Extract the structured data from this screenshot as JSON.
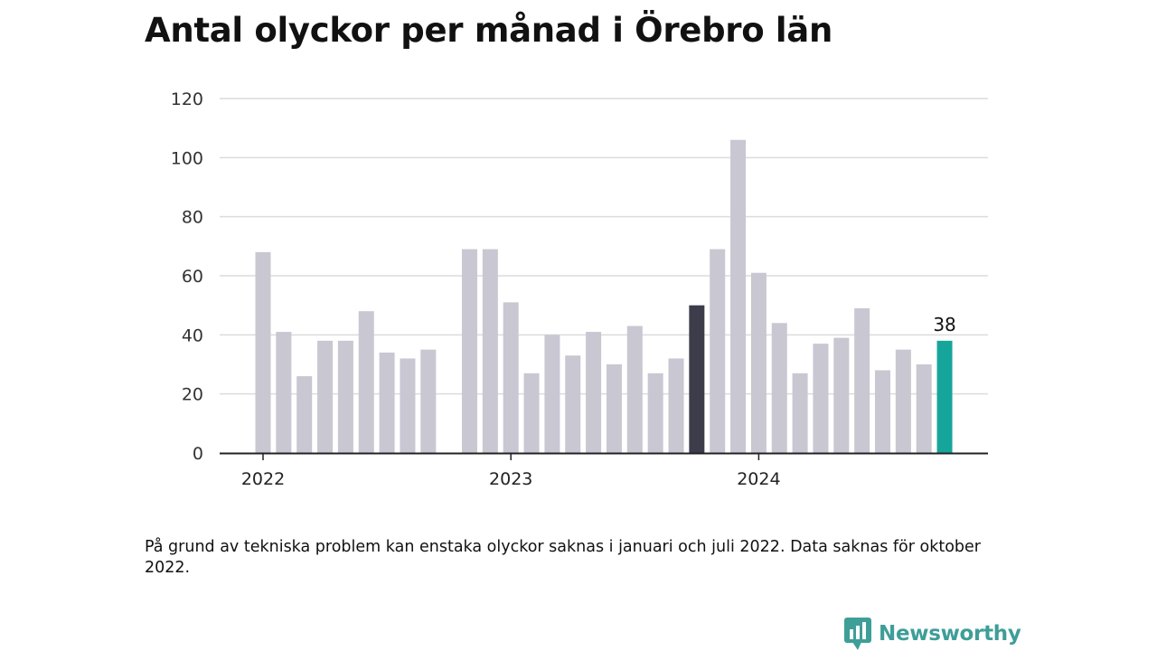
{
  "title": "Antal olyckor per månad i Örebro län",
  "note": "På grund av tekniska problem kan enstaka olyckor saknas i januari och juli 2022. Data saknas för oktober 2022.",
  "brand": {
    "name": "Newsworthy",
    "icon": "newsworthy-logo-icon"
  },
  "colors": {
    "bar": "#c8c7d2",
    "highlight_previous_year": "#3c3c4b",
    "highlight_latest": "#16a59b",
    "grid": "#dcdcdc",
    "axis": "#222222",
    "brand": "#3e9e98"
  },
  "chart_data": {
    "type": "bar",
    "title": "Antal olyckor per månad i Örebro län",
    "xlabel": "",
    "ylabel": "",
    "ylim": [
      0,
      120
    ],
    "yticks": [
      0,
      20,
      40,
      60,
      80,
      100,
      120
    ],
    "x_tick_labels": [
      "2022",
      "2023",
      "2024"
    ],
    "grid": true,
    "legend": "none",
    "categories": [
      "2022-01",
      "2022-02",
      "2022-03",
      "2022-04",
      "2022-05",
      "2022-06",
      "2022-07",
      "2022-08",
      "2022-09",
      "2022-10",
      "2022-11",
      "2022-12",
      "2023-01",
      "2023-02",
      "2023-03",
      "2023-04",
      "2023-05",
      "2023-06",
      "2023-07",
      "2023-08",
      "2023-09",
      "2023-10",
      "2023-11",
      "2023-12",
      "2024-01",
      "2024-02",
      "2024-03",
      "2024-04",
      "2024-05",
      "2024-06",
      "2024-07",
      "2024-08",
      "2024-09",
      "2024-10"
    ],
    "values": [
      68,
      41,
      26,
      38,
      38,
      48,
      34,
      32,
      35,
      null,
      69,
      69,
      51,
      27,
      40,
      33,
      41,
      30,
      43,
      27,
      32,
      50,
      69,
      106,
      61,
      44,
      27,
      37,
      39,
      49,
      28,
      35,
      30,
      38
    ],
    "highlights": [
      {
        "category": "2023-10",
        "color_key": "highlight_previous_year"
      },
      {
        "category": "2024-10",
        "color_key": "highlight_latest"
      }
    ],
    "data_labels": [
      {
        "category": "2024-10",
        "text": "38"
      }
    ]
  }
}
